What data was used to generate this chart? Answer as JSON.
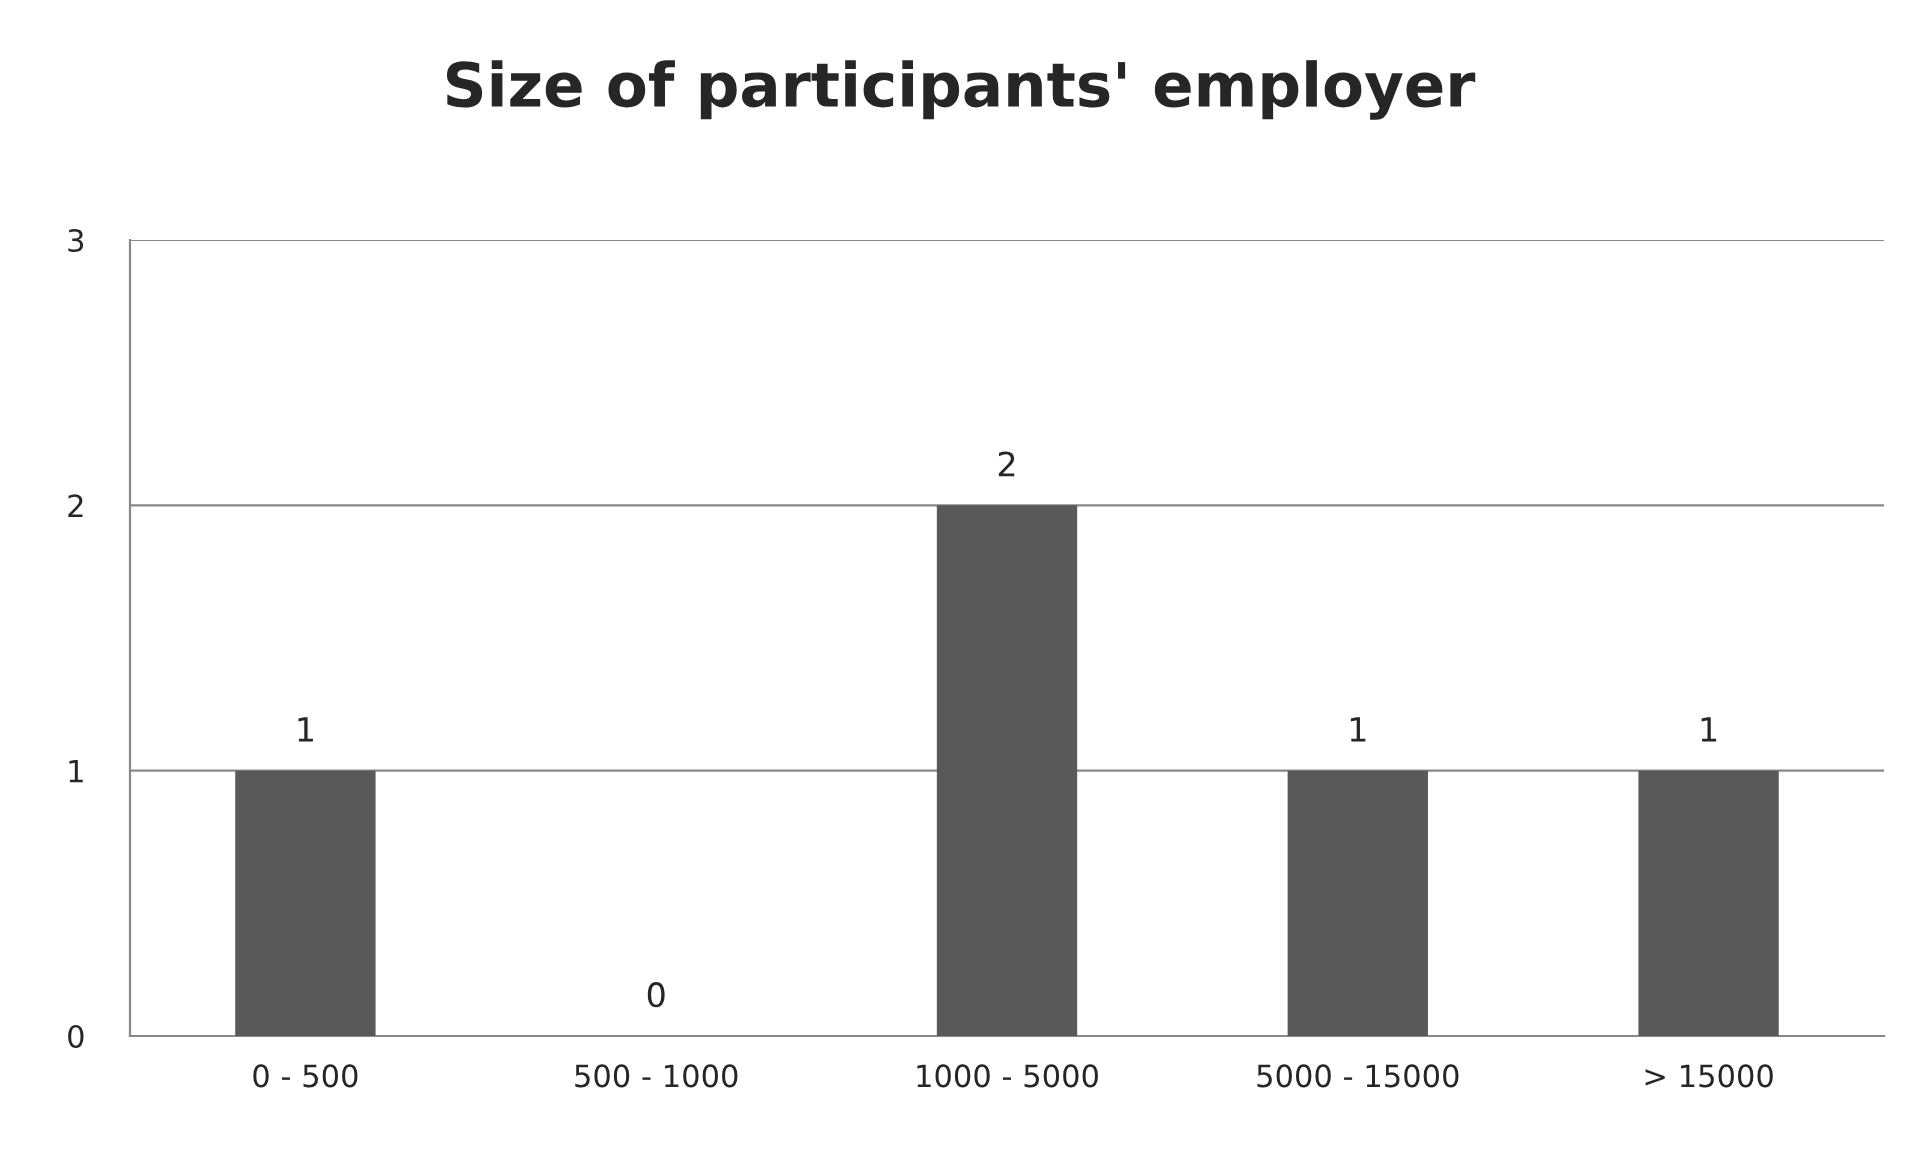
{
  "chart_data": {
    "type": "bar",
    "title": "Size of participants' employer",
    "categories": [
      "0 - 500",
      "500 - 1000",
      "1000 - 5000",
      "5000 - 15000",
      "> 15000"
    ],
    "values": [
      1,
      0,
      2,
      1,
      1
    ],
    "color": "#595959",
    "ylim": [
      0,
      3
    ],
    "yticks": [
      0,
      1,
      2,
      3
    ],
    "grid": "y",
    "data_labels": true
  }
}
